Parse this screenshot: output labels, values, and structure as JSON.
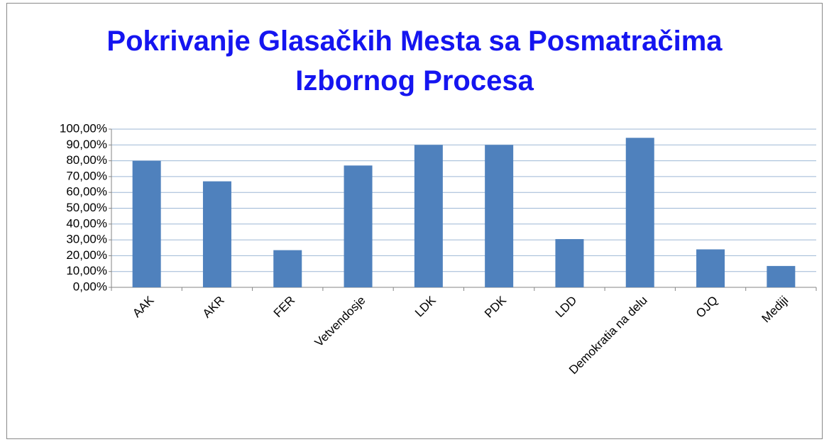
{
  "chart_data": {
    "type": "bar",
    "title": "Pokrivanje Glasačkih Mesta sa Posmatračima Izbornog Procesa",
    "categories": [
      "AAK",
      "AKR",
      "FER",
      "Vetvendosje",
      "LDK",
      "PDK",
      "LDD",
      "Demokratia na delu",
      "OJQ",
      "Mediji"
    ],
    "values": [
      80,
      67,
      23.5,
      77,
      90,
      90,
      30.5,
      94.5,
      24,
      13.5
    ],
    "color": "#4f81bd",
    "ylim": [
      0,
      100
    ],
    "yticks": [
      {
        "value": 0,
        "label": "0,00%"
      },
      {
        "value": 10,
        "label": "10,00%"
      },
      {
        "value": 20,
        "label": "20,00%"
      },
      {
        "value": 30,
        "label": "30,00%"
      },
      {
        "value": 40,
        "label": "40,00%"
      },
      {
        "value": 50,
        "label": "50,00%"
      },
      {
        "value": 60,
        "label": "60,00%"
      },
      {
        "value": 70,
        "label": "70,00%"
      },
      {
        "value": 80,
        "label": "80,00%"
      },
      {
        "value": 90,
        "label": "90,00%"
      },
      {
        "value": 100,
        "label": "100,00%"
      }
    ],
    "grid": true
  }
}
